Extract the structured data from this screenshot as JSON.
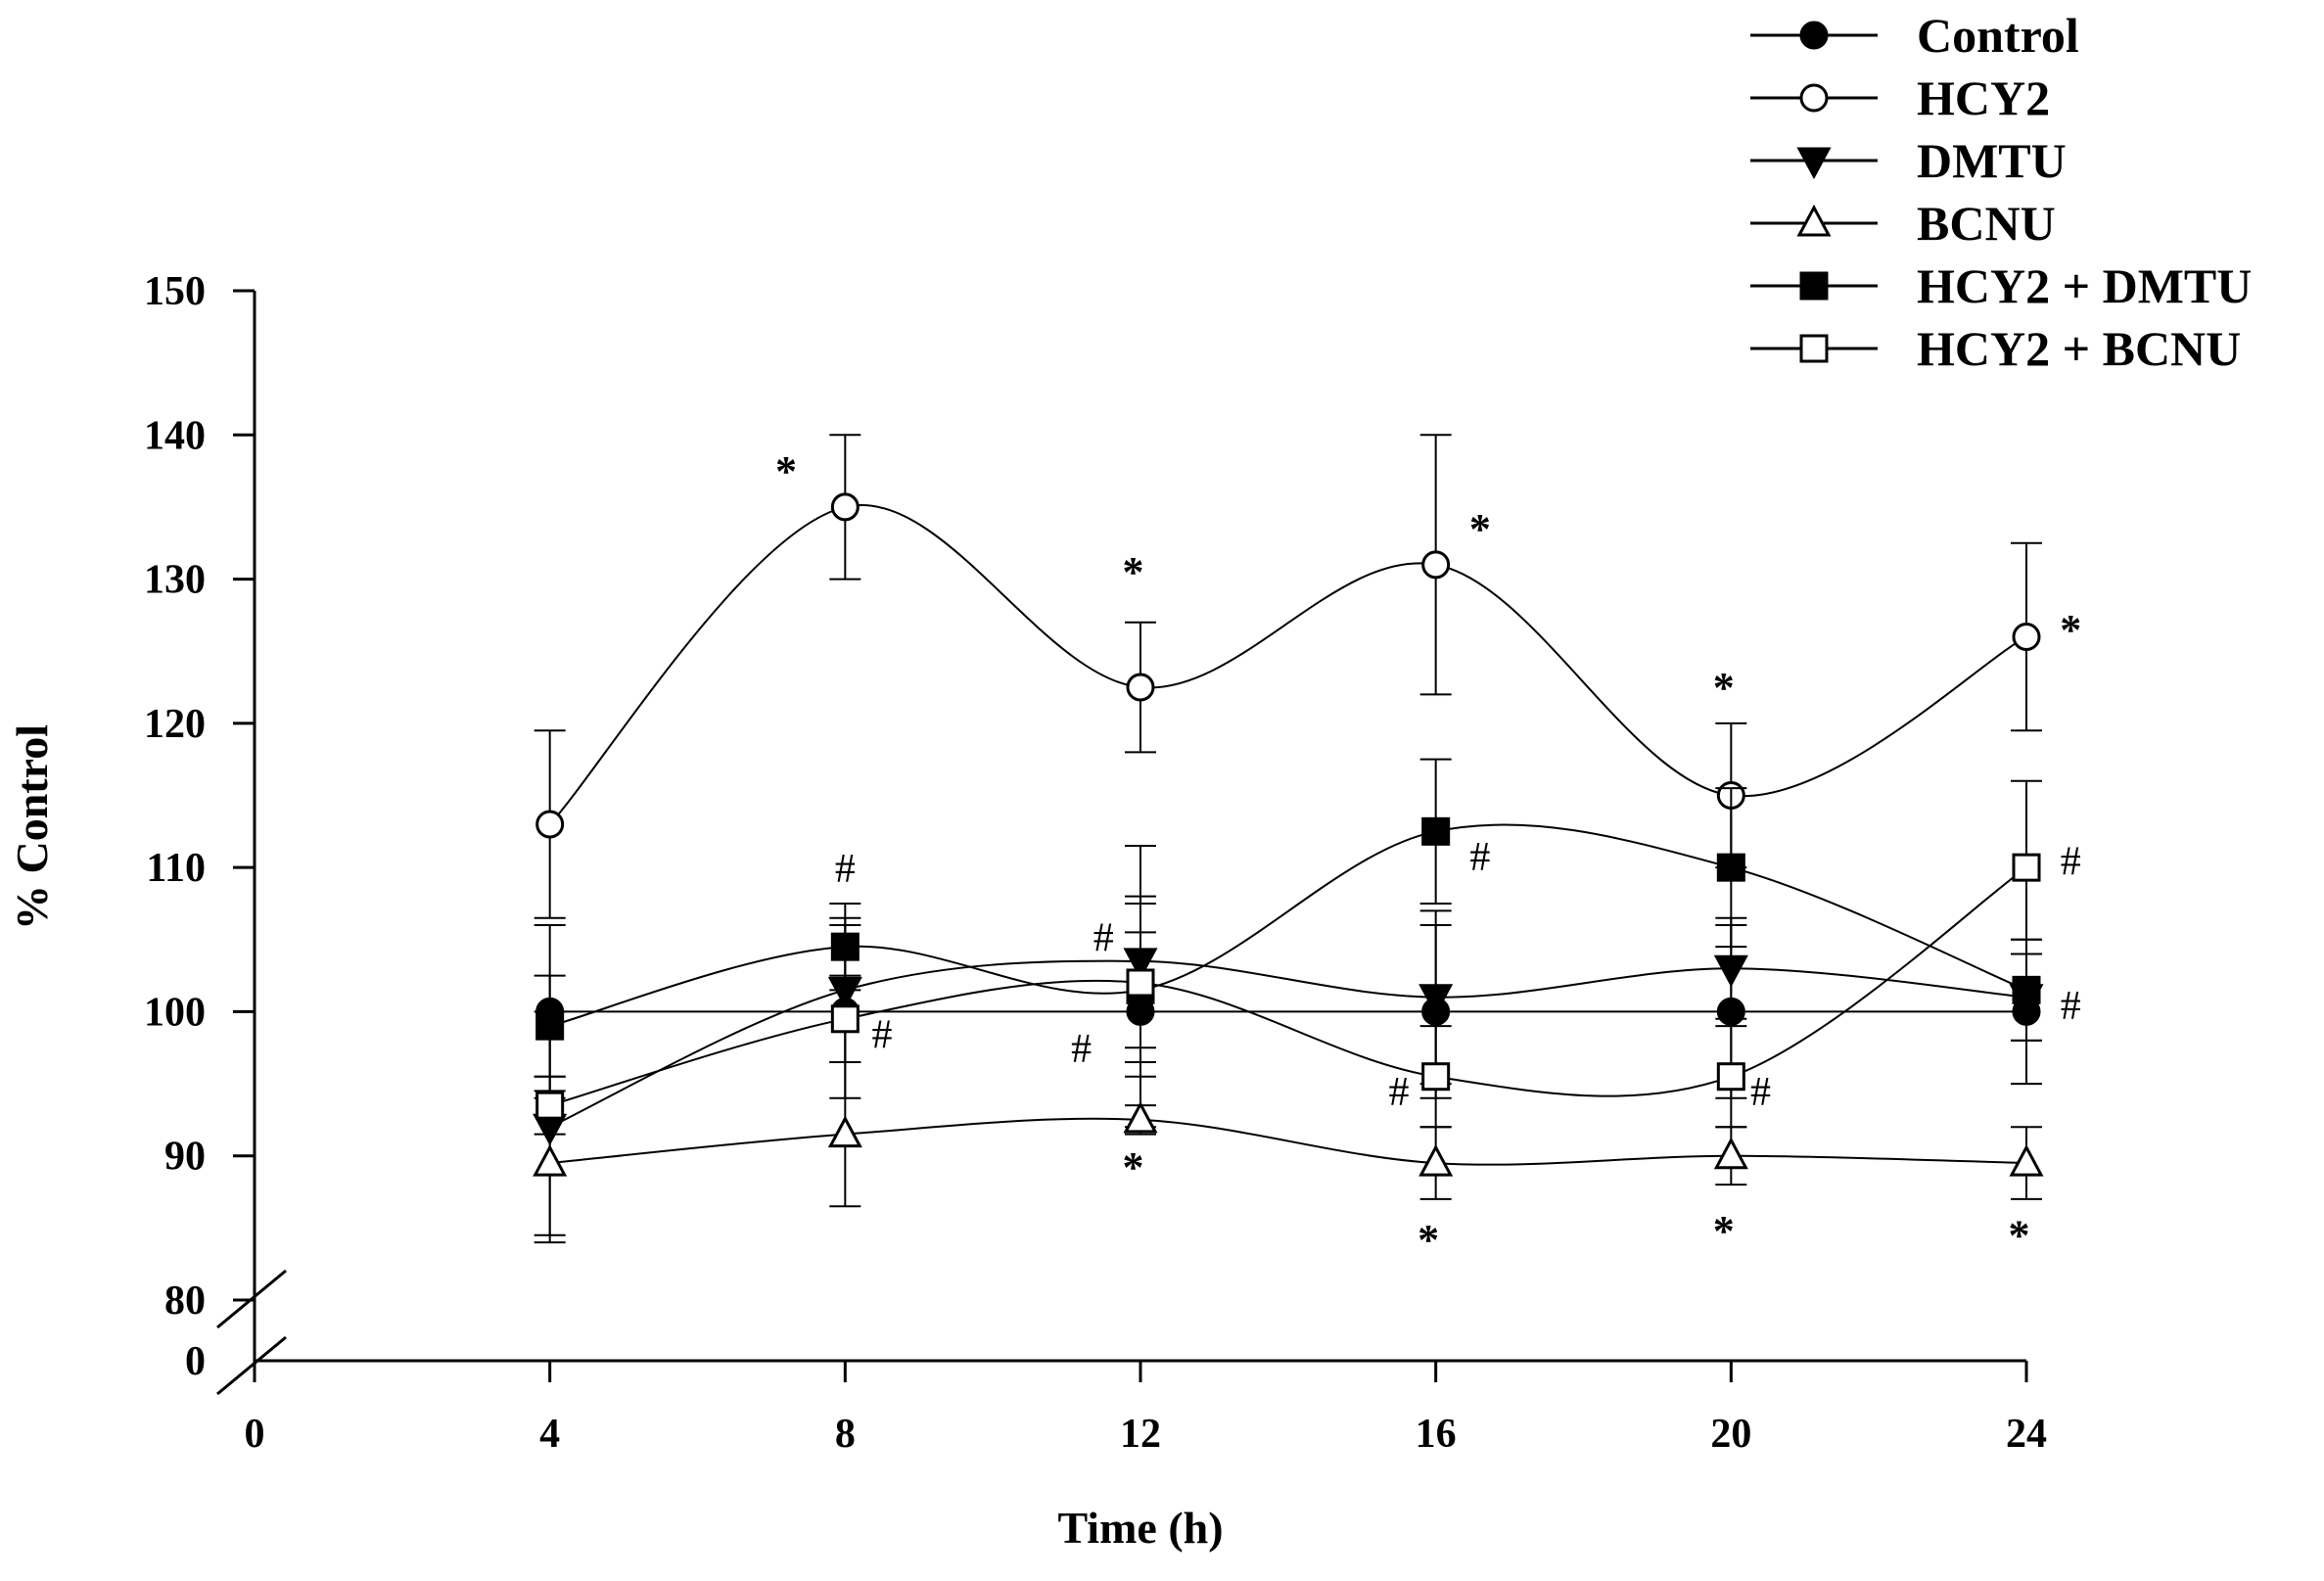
{
  "chart_data": {
    "type": "line",
    "title": "",
    "xlabel": "Time (h)",
    "ylabel": "% Control",
    "xlim": [
      0,
      24
    ],
    "ylim": [
      80,
      150
    ],
    "broken_axis_lower_label": "0",
    "x_ticks": [
      0,
      4,
      8,
      12,
      16,
      20,
      24
    ],
    "y_ticks": [
      80,
      90,
      100,
      110,
      120,
      130,
      140,
      150
    ],
    "grid": false,
    "legend_position": "top-right",
    "series": [
      {
        "name": "Control",
        "marker": "filled-circle",
        "x": [
          4,
          8,
          12,
          16,
          20,
          24
        ],
        "y": [
          100,
          100,
          100,
          100,
          100,
          100
        ],
        "err": [
          6,
          6,
          8,
          6,
          6,
          5
        ]
      },
      {
        "name": "HCY2",
        "marker": "open-circle",
        "x": [
          4,
          8,
          12,
          16,
          20,
          24
        ],
        "y": [
          113,
          135,
          122.5,
          131,
          115,
          126
        ],
        "err": [
          6.5,
          5,
          4.5,
          9,
          5,
          6.5
        ]
      },
      {
        "name": "DMTU",
        "marker": "filled-triangle-down",
        "x": [
          4,
          8,
          12,
          16,
          20,
          24
        ],
        "y": [
          92,
          101.5,
          103.5,
          101,
          103,
          101
        ],
        "err": [
          8,
          5,
          8,
          6,
          3.5,
          3
        ]
      },
      {
        "name": "BCNU",
        "marker": "open-triangle-up",
        "x": [
          4,
          8,
          12,
          16,
          20,
          24
        ],
        "y": [
          89.5,
          91.5,
          92.5,
          89.5,
          90,
          89.5
        ],
        "err": [
          5,
          5,
          1,
          2.5,
          2,
          2.5
        ]
      },
      {
        "name": "HCY2 + DMTU",
        "marker": "filled-square",
        "x": [
          4,
          8,
          12,
          16,
          20,
          24
        ],
        "y": [
          99,
          104.5,
          101.5,
          112.5,
          110,
          101.5
        ],
        "err": [
          3.5,
          3,
          4,
          5,
          5.5,
          3.5
        ]
      },
      {
        "name": "HCY2 + BCNU",
        "marker": "open-square",
        "x": [
          4,
          8,
          12,
          16,
          20,
          24
        ],
        "y": [
          93.5,
          99.5,
          102,
          95.5,
          95.5,
          110
        ],
        "err": [
          2,
          3,
          5.5,
          3.5,
          3.5,
          6
        ]
      }
    ],
    "annotations": [
      {
        "text": "*",
        "x": 7.2,
        "y": 136.5
      },
      {
        "text": "*",
        "x": 11.9,
        "y": 129.5
      },
      {
        "text": "*",
        "x": 16.6,
        "y": 132.5
      },
      {
        "text": "*",
        "x": 19.9,
        "y": 121.5
      },
      {
        "text": "*",
        "x": 24.6,
        "y": 125.5
      },
      {
        "text": "#",
        "x": 8.0,
        "y": 109
      },
      {
        "text": "#",
        "x": 11.5,
        "y": 104.2
      },
      {
        "text": "#",
        "x": 16.6,
        "y": 109.8
      },
      {
        "text": "#",
        "x": 24.6,
        "y": 109.5
      },
      {
        "text": "#",
        "x": 8.5,
        "y": 97.5
      },
      {
        "text": "#",
        "x": 11.2,
        "y": 96.5
      },
      {
        "text": "#",
        "x": 15.5,
        "y": 93.5
      },
      {
        "text": "#",
        "x": 20.4,
        "y": 93.5
      },
      {
        "text": "#",
        "x": 24.6,
        "y": 99.5
      },
      {
        "text": "*",
        "x": 11.9,
        "y": 88.2
      },
      {
        "text": "*",
        "x": 15.9,
        "y": 83.2
      },
      {
        "text": "*",
        "x": 19.9,
        "y": 83.8
      },
      {
        "text": "*",
        "x": 23.9,
        "y": 83.5
      }
    ]
  }
}
